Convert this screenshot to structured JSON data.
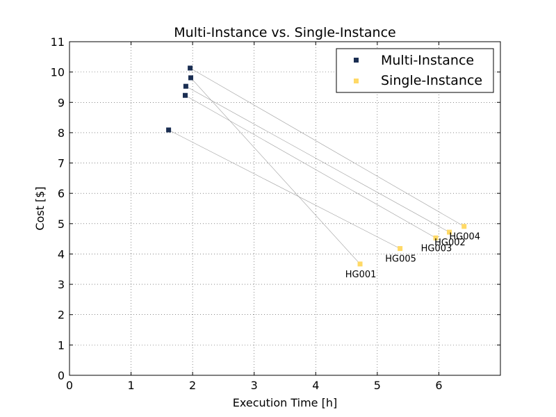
{
  "chart_data": {
    "type": "scatter",
    "title": "Multi-Instance vs. Single-Instance",
    "xlabel": "Execution Time [h]",
    "ylabel": "Cost [$]",
    "xlim": [
      0,
      7
    ],
    "ylim": [
      0,
      11
    ],
    "xticks": [
      "0",
      "1",
      "2",
      "3",
      "4",
      "5",
      "6"
    ],
    "yticks": [
      "0",
      "1",
      "2",
      "3",
      "4",
      "5",
      "6",
      "7",
      "8",
      "9",
      "10",
      "11"
    ],
    "grid": true,
    "legend_position": "top-right",
    "series": [
      {
        "name": "Multi-Instance",
        "color": "#1a2e52",
        "marker": "square",
        "points": [
          {
            "x": 1.96,
            "y": 10.13
          },
          {
            "x": 1.97,
            "y": 9.81
          },
          {
            "x": 1.89,
            "y": 9.53
          },
          {
            "x": 1.88,
            "y": 9.23
          },
          {
            "x": 1.61,
            "y": 8.09
          }
        ]
      },
      {
        "name": "Single-Instance",
        "color": "#ffd966",
        "marker": "square",
        "points": [
          {
            "x": 6.41,
            "y": 4.91,
            "label": "HG004"
          },
          {
            "x": 6.17,
            "y": 4.72,
            "label": "HG002"
          },
          {
            "x": 5.95,
            "y": 4.53,
            "label": "HG003"
          },
          {
            "x": 5.37,
            "y": 4.18,
            "label": "HG005"
          },
          {
            "x": 4.72,
            "y": 3.67,
            "label": "HG001"
          }
        ]
      }
    ],
    "connections": [
      {
        "from": 0,
        "to": 0
      },
      {
        "from": 1,
        "to": 4
      },
      {
        "from": 2,
        "to": 1
      },
      {
        "from": 3,
        "to": 2
      },
      {
        "from": 4,
        "to": 3
      }
    ],
    "connection_color": "#9e9e9e"
  }
}
